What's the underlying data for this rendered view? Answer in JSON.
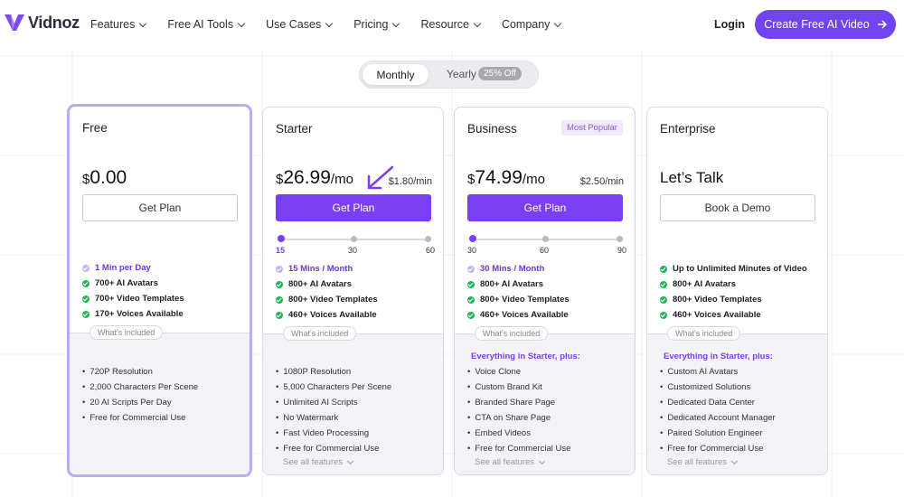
{
  "brand": {
    "name": "Vidnoz"
  },
  "nav": {
    "items": [
      {
        "label": "Features"
      },
      {
        "label": "Free AI Tools"
      },
      {
        "label": "Use Cases"
      },
      {
        "label": "Pricing"
      },
      {
        "label": "Resource"
      },
      {
        "label": "Company"
      }
    ],
    "login": "Login",
    "cta": "Create Free AI Video"
  },
  "billing": {
    "monthly": "Monthly",
    "yearly": "Yearly",
    "discount": "25% Off",
    "selected": "Monthly"
  },
  "colors": {
    "accent": "#7b3ff2",
    "check_green": "#26b35a",
    "free_border": "#b9abf5"
  },
  "plans": [
    {
      "name": "Free",
      "currency": "$",
      "price": "0.00",
      "button": "Get Plan",
      "features": [
        {
          "text": "1 Min per Day"
        },
        {
          "text": "700+ AI Avatars"
        },
        {
          "text": "700+ Video Templates"
        },
        {
          "text": "170+ Voices Available"
        }
      ],
      "included_label": "What's included",
      "included": [
        "720P Resolution",
        "2,000 Characters Per Scene",
        "20 AI Scripts Per Day",
        "Free for Commercial Use"
      ]
    },
    {
      "name": "Starter",
      "currency": "$",
      "price": "26.99",
      "period": "/mo",
      "rate": "$1.80/min",
      "button": "Get Plan",
      "slider": {
        "ticks": [
          "15",
          "30",
          "60"
        ],
        "selected": "15"
      },
      "features": [
        {
          "text": "15 Mins / Month"
        },
        {
          "text": "800+ AI Avatars"
        },
        {
          "text": "800+ Video Templates"
        },
        {
          "text": "460+ Voices Available"
        }
      ],
      "included_label": "What's included",
      "included": [
        "1080P Resolution",
        "5,000 Characters Per Scene",
        "Unlimited AI Scripts",
        "No Watermark",
        "Fast Video Processing",
        "Free for Commercial Use"
      ],
      "see_all": "See all features"
    },
    {
      "name": "Business",
      "badge": "Most Popular",
      "currency": "$",
      "price": "74.99",
      "period": "/mo",
      "rate": "$2.50/min",
      "button": "Get Plan",
      "slider": {
        "ticks": [
          "30",
          "60",
          "90"
        ],
        "selected": "30"
      },
      "features": [
        {
          "text": "30 Mins / Month"
        },
        {
          "text": "800+ AI Avatars"
        },
        {
          "text": "800+ Video Templates"
        },
        {
          "text": "460+ Voices Available"
        }
      ],
      "included_label": "What's included",
      "plus_label": "Everything in Starter, plus:",
      "included": [
        "Voice Clone",
        "Custom Brand Kit",
        "Branded Share Page",
        "CTA on Share Page",
        "Embed Videos",
        "Free for Commercial Use"
      ],
      "see_all": "See all features"
    },
    {
      "name": "Enterprise",
      "headline": "Let’s Talk",
      "button": "Book a Demo",
      "features": [
        {
          "text": "Up to Unlimited Minutes of Video"
        },
        {
          "text": "800+ AI Avatars"
        },
        {
          "text": "800+ Video Templates"
        },
        {
          "text": "460+ Voices Available"
        }
      ],
      "included_label": "What's included",
      "plus_label": "Everything in Starter, plus:",
      "included": [
        "Custom AI Avatars",
        "Customized Solutions",
        "Dedicated Data Center",
        "Dedicated Account Manager",
        "Paired Solution Engineer",
        "Free for Commercial Use"
      ],
      "see_all": "See all features"
    }
  ]
}
